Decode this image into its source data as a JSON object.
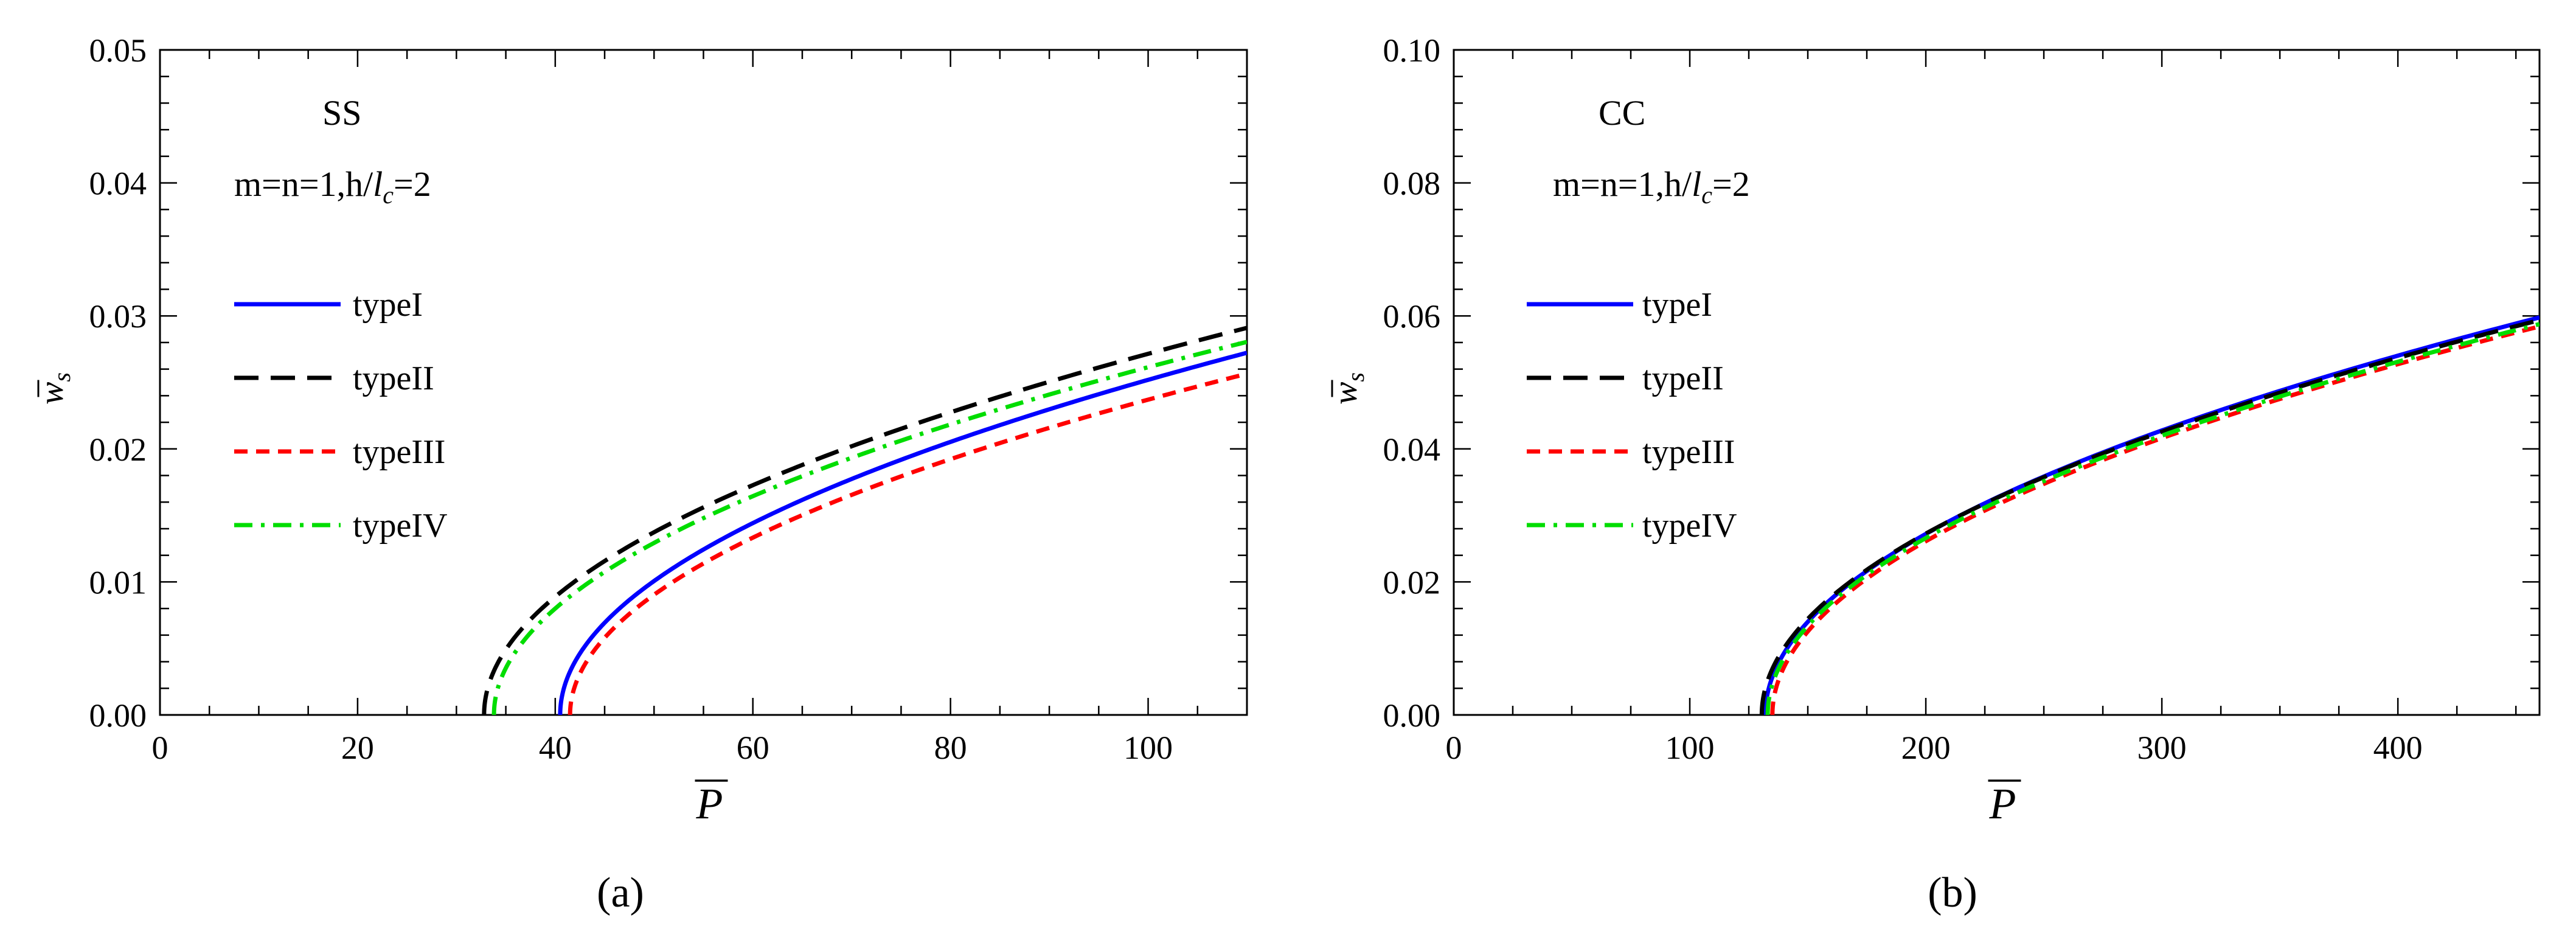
{
  "chart_data": [
    {
      "type": "line",
      "caption": "(a)",
      "xlabel": "P",
      "ylabel": "w",
      "ylabel_sub": "s",
      "xlim": [
        0,
        110
      ],
      "ylim": [
        0,
        0.05
      ],
      "xticks": [
        0,
        20,
        40,
        60,
        80,
        100
      ],
      "xtick_labels": [
        "0",
        "20",
        "40",
        "60",
        "80",
        "100"
      ],
      "yticks": [
        0,
        0.01,
        0.02,
        0.03,
        0.04,
        0.05
      ],
      "ytick_labels": [
        "0.00",
        "0.01",
        "0.02",
        "0.03",
        "0.04",
        "0.05"
      ],
      "annotation_bc": "SS",
      "annotation_params": {
        "prefix": "m=n=1,h/",
        "l": "l",
        "sub": "c",
        "suffix": "=2"
      },
      "series": [
        {
          "name": "typeI",
          "p0": 40.5,
          "k": 0.003266,
          "color": "#0000ff",
          "dash": "solid"
        },
        {
          "name": "typeII",
          "p0": 32.8,
          "k": 0.003312,
          "color": "#000000",
          "dash": "long"
        },
        {
          "name": "typeIII",
          "p0": 41.5,
          "k": 0.003099,
          "color": "#ff0000",
          "dash": "short"
        },
        {
          "name": "typeIV",
          "p0": 33.8,
          "k": 0.003213,
          "color": "#00dd00",
          "dash": "dashdot"
        }
      ]
    },
    {
      "type": "line",
      "caption": "(b)",
      "xlabel": "P",
      "ylabel": "w",
      "ylabel_sub": "s",
      "xlim": [
        0,
        460
      ],
      "ylim": [
        0,
        0.1
      ],
      "xticks": [
        0,
        100,
        200,
        300,
        400
      ],
      "xtick_labels": [
        "0",
        "100",
        "200",
        "300",
        "400"
      ],
      "yticks": [
        0,
        0.02,
        0.04,
        0.06,
        0.08,
        0.1
      ],
      "ytick_labels": [
        "0.00",
        "0.02",
        "0.04",
        "0.06",
        "0.08",
        "0.10"
      ],
      "annotation_bc": "CC",
      "annotation_params": {
        "prefix": "m=n=1,h/",
        "l": "l",
        "sub": "c",
        "suffix": "=2"
      },
      "series": [
        {
          "name": "typeI",
          "p0": 132,
          "k": 0.0033,
          "color": "#0000ff",
          "dash": "solid"
        },
        {
          "name": "typeII",
          "p0": 130.5,
          "k": 0.00327,
          "color": "#000000",
          "dash": "long"
        },
        {
          "name": "typeIII",
          "p0": 135,
          "k": 0.00324,
          "color": "#ff0000",
          "dash": "short"
        },
        {
          "name": "typeIV",
          "p0": 133,
          "k": 0.00325,
          "color": "#00dd00",
          "dash": "dashdot"
        }
      ]
    }
  ]
}
